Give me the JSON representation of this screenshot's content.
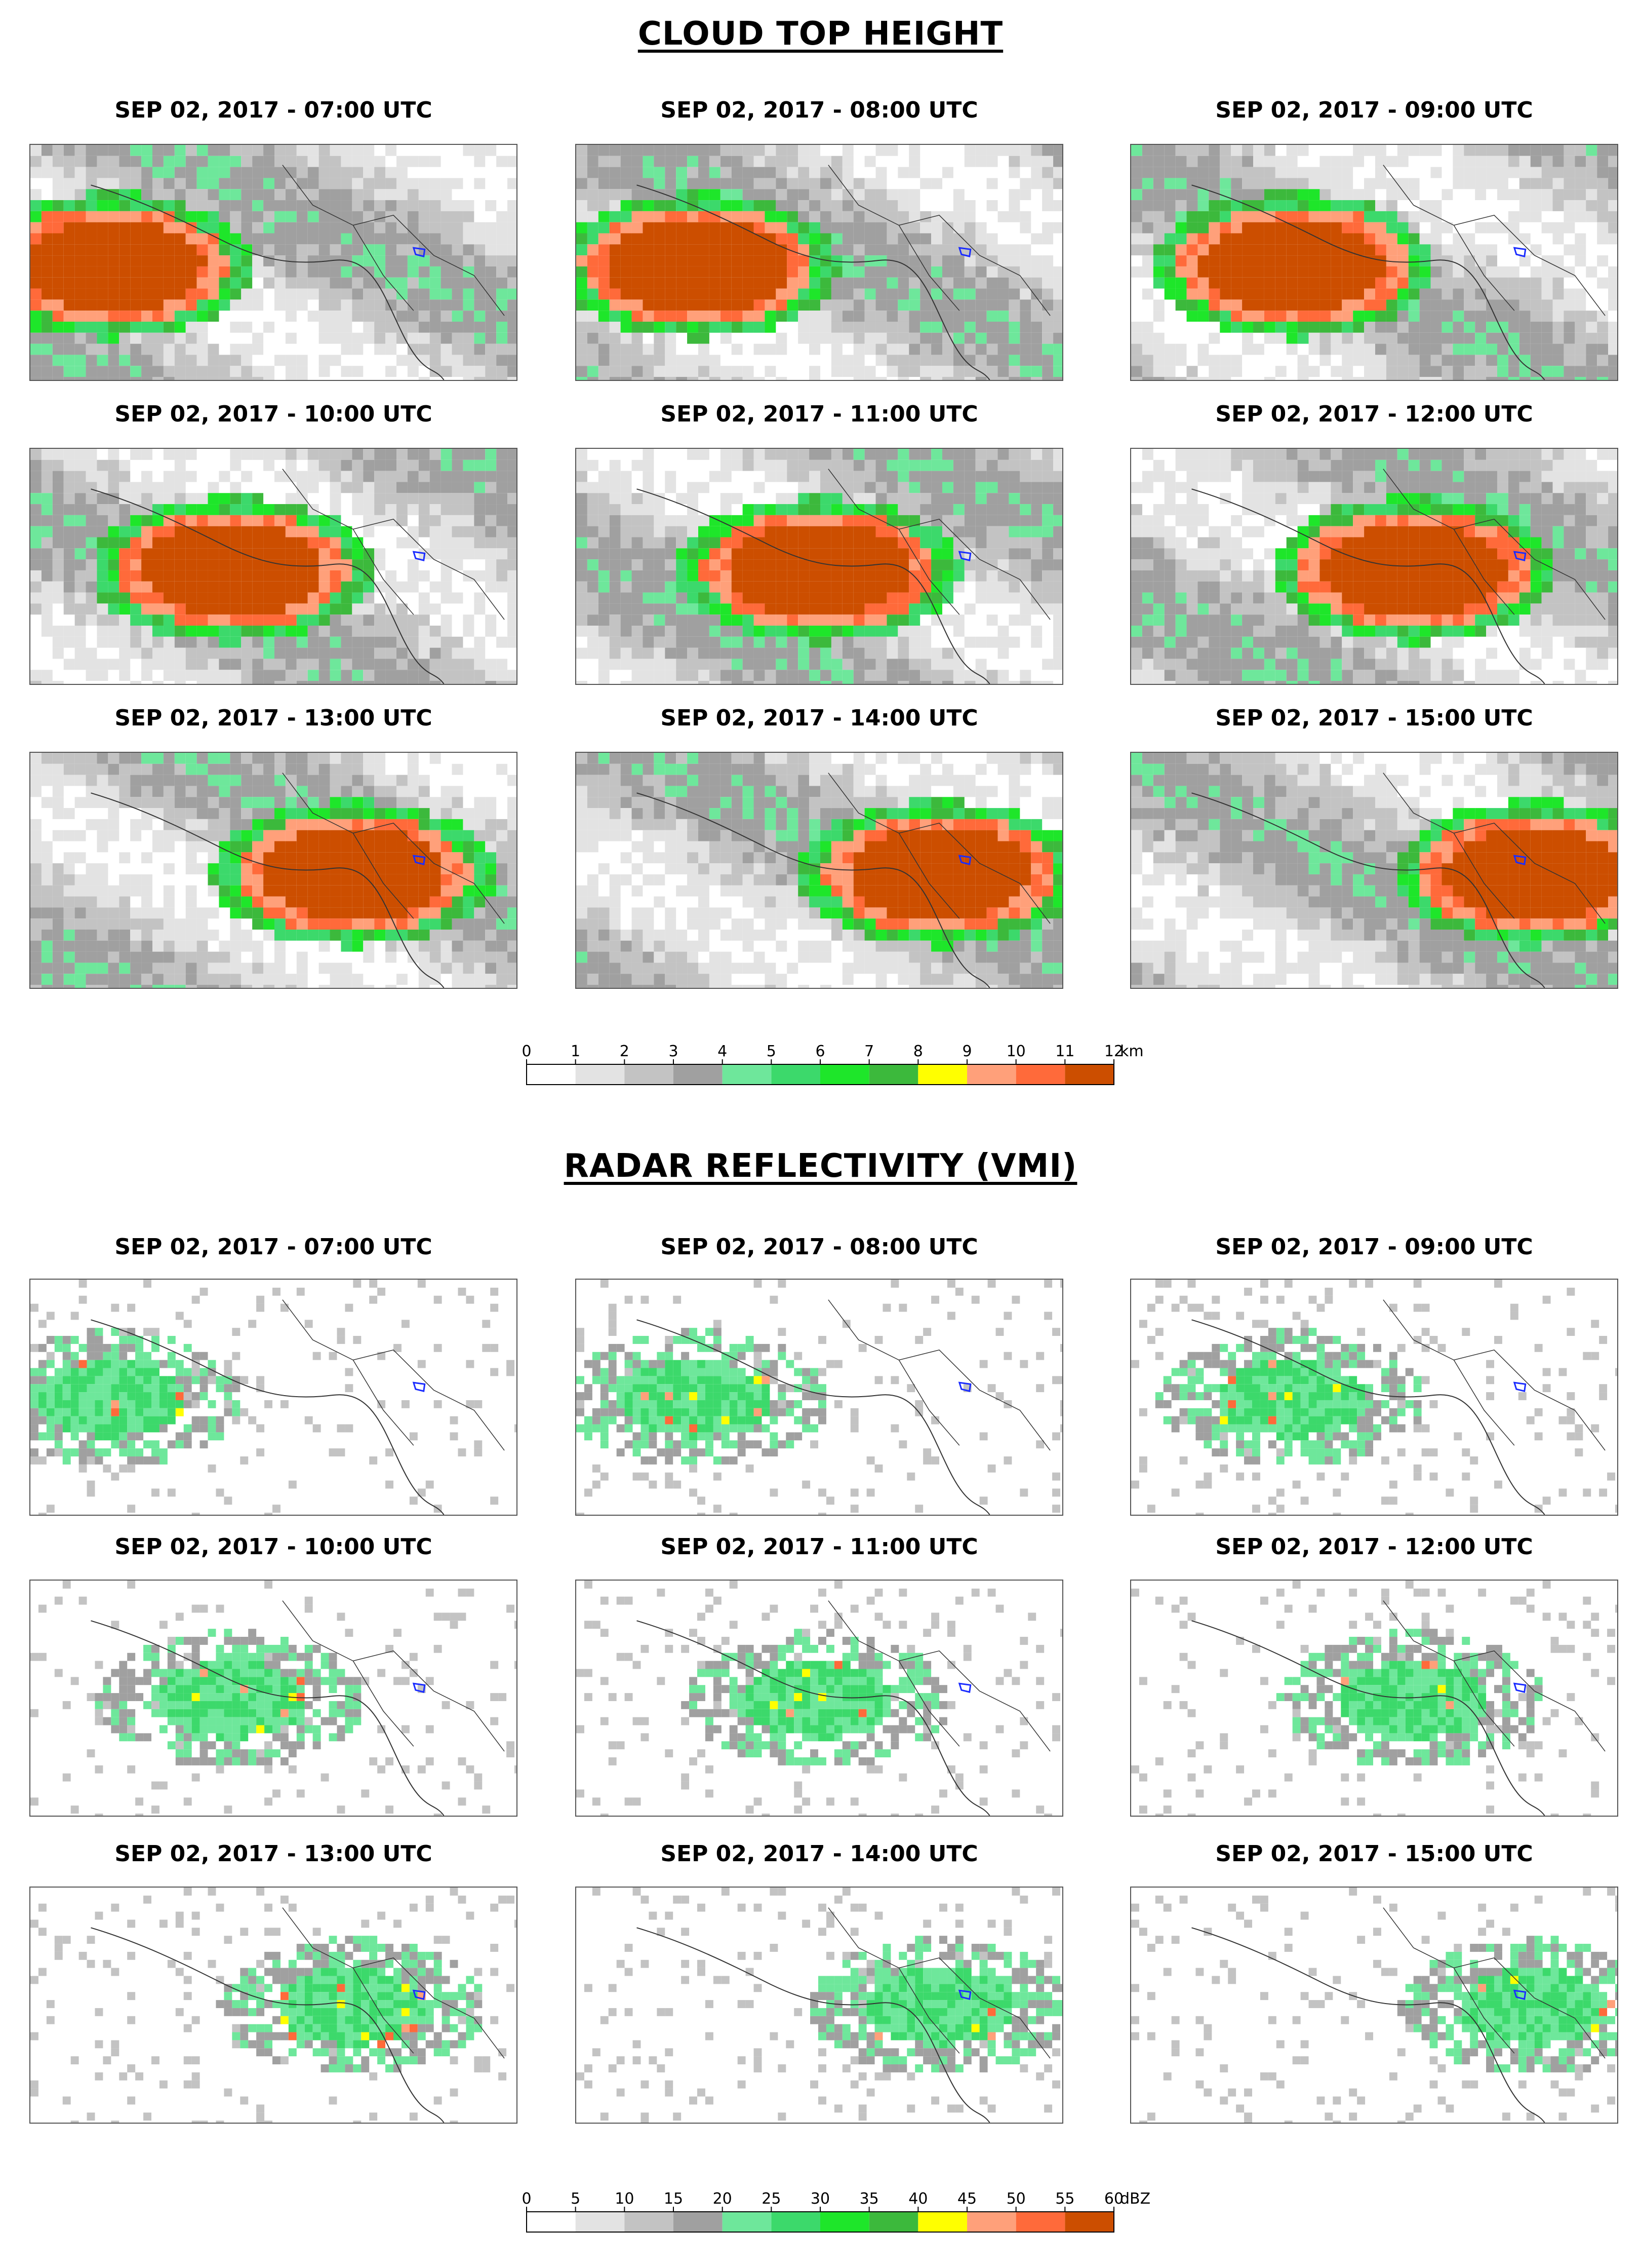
{
  "sections": [
    {
      "title": "CLOUD TOP HEIGHT",
      "panel_titles": [
        "SEP 02, 2017 - 07:00 UTC",
        "SEP 02, 2017 - 08:00 UTC",
        "SEP 02, 2017 - 09:00 UTC",
        "SEP 02, 2017 - 10:00 UTC",
        "SEP 02, 2017 - 11:00 UTC",
        "SEP 02, 2017 - 12:00 UTC",
        "SEP 02, 2017 - 13:00 UTC",
        "SEP 02, 2017 - 14:00 UTC",
        "SEP 02, 2017 - 15:00 UTC"
      ],
      "colorbar": {
        "ticks": [
          "0",
          "1",
          "2",
          "3",
          "4",
          "5",
          "6",
          "7",
          "8",
          "9",
          "10",
          "11",
          "12"
        ],
        "unit": "km",
        "colors": [
          "#ffffff",
          "#e3e3e3",
          "#c3c3c3",
          "#a0a0a0",
          "#6ee79b",
          "#3cd96b",
          "#1ee62a",
          "#3cb93c",
          "#ffff00",
          "#ffa07a",
          "#ff6a3a",
          "#cc4e00"
        ]
      }
    },
    {
      "title": "RADAR REFLECTIVITY (VMI)",
      "panel_titles": [
        "SEP 02, 2017 - 07:00 UTC",
        "SEP 02, 2017 - 08:00 UTC",
        "SEP 02, 2017 - 09:00 UTC",
        "SEP 02, 2017 - 10:00 UTC",
        "SEP 02, 2017 - 11:00 UTC",
        "SEP 02, 2017 - 12:00 UTC",
        "SEP 02, 2017 - 13:00 UTC",
        "SEP 02, 2017 - 14:00 UTC",
        "SEP 02, 2017 - 15:00 UTC"
      ],
      "colorbar": {
        "ticks": [
          "0",
          "5",
          "10",
          "15",
          "20",
          "25",
          "30",
          "35",
          "40",
          "45",
          "50",
          "55",
          "60"
        ],
        "unit": "dBZ",
        "colors": [
          "#ffffff",
          "#e3e3e3",
          "#c3c3c3",
          "#a0a0a0",
          "#6ee79b",
          "#3cd96b",
          "#1ee62a",
          "#3cb93c",
          "#ffff00",
          "#ffa07a",
          "#ff6a3a",
          "#cc4e00"
        ]
      }
    }
  ]
}
